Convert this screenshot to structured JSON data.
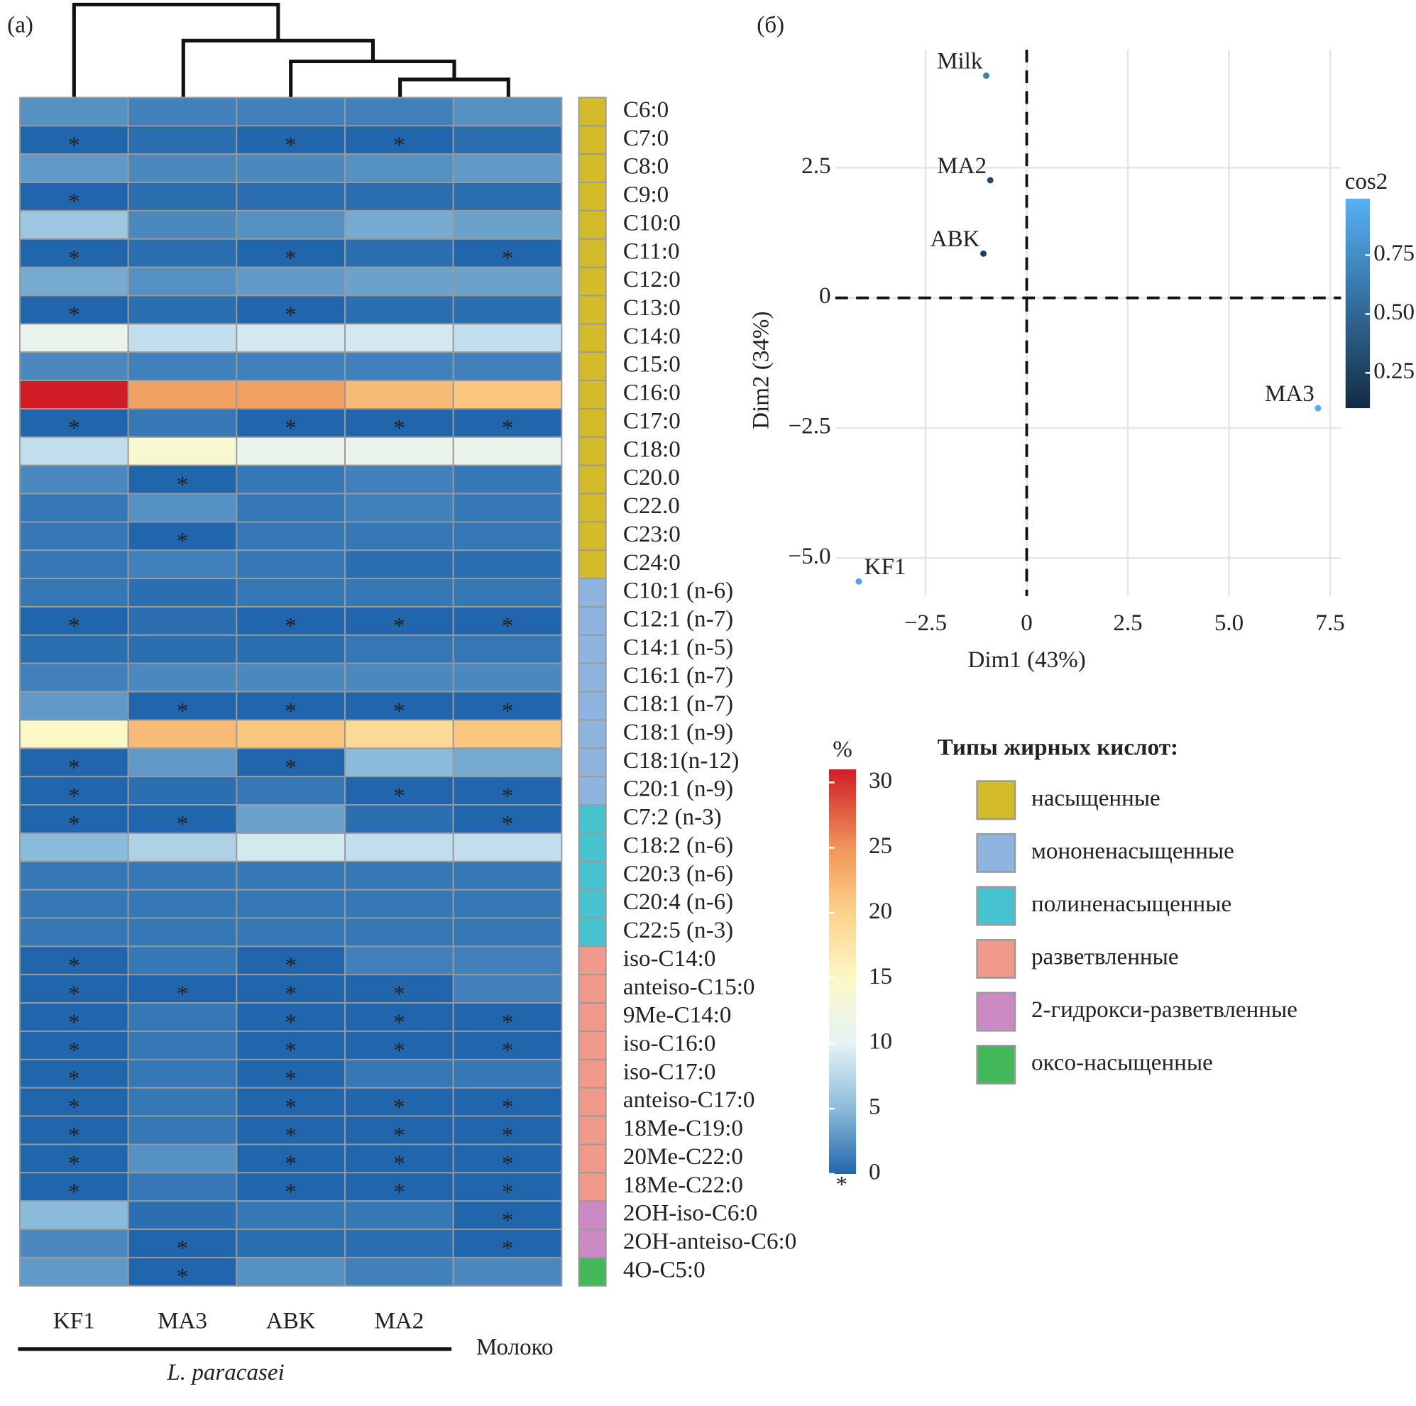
{
  "chart_data": [
    {
      "type": "heatmap",
      "panel_label": "(а)",
      "columns": [
        "KF1",
        "MA3",
        "ABK",
        "MA2",
        "Молоко"
      ],
      "column_group_label": "L. paracasei",
      "rows": [
        "C6:0",
        "C7:0",
        "C8:0",
        "C9:0",
        "C10:0",
        "C11:0",
        "C12:0",
        "C13:0",
        "C14:0",
        "C15:0",
        "C16:0",
        "C17:0",
        "C18:0",
        "C20.0",
        "C22.0",
        "C23:0",
        "C24:0",
        "C10:1 (n-6)",
        "C12:1 (n-7)",
        "C14:1 (n-5)",
        "C16:1 (n-7)",
        "C18:1 (n-7)",
        "C18:1 (n-9)",
        "C18:1(n-12)",
        "C20:1 (n-9)",
        "C7:2 (n-3)",
        "C18:2 (n-6)",
        "C20:3 (n-6)",
        "C20:4 (n-6)",
        "C22:5 (n-3)",
        "iso-C14:0",
        "anteiso-C15:0",
        "9Me-C14:0",
        "iso-C16:0",
        "iso-C17:0",
        "anteiso-C17:0",
        "18Me-C19:0",
        "20Me-C22:0",
        "18Me-C22:0",
        "2OH-iso-C6:0",
        "2OH-anteiso-C6:0",
        "4O-C5:0"
      ],
      "values": [
        [
          2.5,
          1.5,
          1.5,
          1.5,
          2.5
        ],
        [
          0,
          0.5,
          0,
          0,
          0.5
        ],
        [
          3,
          2,
          2,
          2.5,
          3
        ],
        [
          0,
          0.5,
          0.5,
          0.5,
          0.5
        ],
        [
          6,
          2,
          2.5,
          4,
          3.5
        ],
        [
          0,
          0.5,
          0,
          0.5,
          0
        ],
        [
          4,
          2.5,
          3,
          3.5,
          3.5
        ],
        [
          0,
          0.5,
          0,
          0.5,
          0.5
        ],
        [
          11,
          8,
          9,
          9,
          8
        ],
        [
          2,
          1.5,
          1.5,
          1.5,
          1.5
        ],
        [
          31,
          24,
          24,
          22,
          21
        ],
        [
          0,
          1,
          0,
          0,
          0
        ],
        [
          8,
          14,
          11,
          11,
          11
        ],
        [
          2,
          0,
          1,
          1.5,
          1
        ],
        [
          1,
          2.5,
          1,
          1.5,
          1
        ],
        [
          1,
          0,
          1,
          1,
          1
        ],
        [
          1,
          1.5,
          1,
          0.5,
          0.5
        ],
        [
          1,
          0.5,
          1,
          1,
          1
        ],
        [
          0,
          0.5,
          0,
          0,
          0
        ],
        [
          0.5,
          0.5,
          0.5,
          1,
          1
        ],
        [
          1.5,
          2,
          2,
          2,
          2
        ],
        [
          3,
          0,
          0,
          0,
          0
        ],
        [
          15,
          22,
          21,
          19,
          21
        ],
        [
          0,
          3,
          0,
          5,
          4
        ],
        [
          0,
          0.5,
          1,
          0,
          0
        ],
        [
          0,
          0,
          3.5,
          0.5,
          0
        ],
        [
          5,
          7,
          9,
          8,
          8
        ],
        [
          1,
          1,
          1,
          1,
          1
        ],
        [
          1,
          1,
          1,
          1,
          1
        ],
        [
          1,
          1,
          1,
          1,
          1
        ],
        [
          0,
          1,
          0,
          1.5,
          1.5
        ],
        [
          0,
          0,
          0,
          0,
          1.5
        ],
        [
          0,
          1,
          0,
          0,
          0
        ],
        [
          0,
          1,
          0,
          0,
          0
        ],
        [
          0,
          1,
          0,
          1,
          1
        ],
        [
          0,
          1,
          0,
          0,
          0
        ],
        [
          0,
          1,
          0,
          0,
          0
        ],
        [
          0,
          2.5,
          0,
          0,
          0
        ],
        [
          0,
          1,
          0,
          0,
          0
        ],
        [
          5,
          0.5,
          1,
          1,
          0
        ],
        [
          2,
          0,
          0.5,
          0.5,
          0
        ],
        [
          3,
          0,
          2.5,
          1.5,
          2
        ]
      ],
      "zero_marker": "*",
      "colorbar_title": "%",
      "clim": [
        0,
        31
      ],
      "cticks": [
        0,
        5,
        10,
        15,
        20,
        25,
        30
      ],
      "colorscale": [
        [
          0,
          "#2166ac"
        ],
        [
          5,
          "#8bbbda"
        ],
        [
          10,
          "#e6f3f6"
        ],
        [
          15,
          "#fbf8c6"
        ],
        [
          20,
          "#fcd28a"
        ],
        [
          25,
          "#f0955a"
        ],
        [
          31,
          "#d01c25"
        ]
      ],
      "row_groups": [
        0,
        0,
        0,
        0,
        0,
        0,
        0,
        0,
        0,
        0,
        0,
        0,
        0,
        0,
        0,
        0,
        0,
        1,
        1,
        1,
        1,
        1,
        1,
        1,
        1,
        2,
        2,
        2,
        2,
        2,
        3,
        3,
        3,
        3,
        3,
        3,
        3,
        3,
        3,
        4,
        4,
        5
      ],
      "groups_title": "Типы жирных кислот:",
      "groups": [
        {
          "name": "насыщенные",
          "color": "#d4bb2a"
        },
        {
          "name": "мононенасыщенные",
          "color": "#8fb4e0"
        },
        {
          "name": "полиненасыщенные",
          "color": "#47c2cf"
        },
        {
          "name": "разветвленные",
          "color": "#f09a8c"
        },
        {
          "name": "2-гидрокси-разветвленные",
          "color": "#cc8ac4"
        },
        {
          "name": "оксо-насыщенные",
          "color": "#43b85a"
        }
      ]
    },
    {
      "type": "scatter",
      "panel_label": "(б)",
      "x_label": "Dim1 (43%)",
      "y_label": "Dim2 (34%)",
      "labels": [
        "Milk",
        "MA2",
        "ABK",
        "MA3",
        "KF1"
      ],
      "x": [
        -1.0,
        -0.9,
        -1.07,
        7.2,
        -4.15
      ],
      "y": [
        4.27,
        2.26,
        0.85,
        -2.12,
        -5.45
      ],
      "cos2": [
        0.65,
        0.3,
        0.22,
        0.95,
        0.9
      ],
      "xlim": [
        -4.73,
        7.77
      ],
      "ylim": [
        -5.73,
        4.77
      ],
      "xticks": [
        {
          "value": -2.5,
          "label": "−2.5"
        },
        0,
        2.5,
        {
          "value": 5,
          "label": "5.0"
        },
        7.5
      ],
      "yticks": [
        {
          "value": -5,
          "label": "−5.0"
        },
        {
          "value": -2.5,
          "label": "−2.5"
        },
        0,
        2.5
      ],
      "grid": true,
      "hline": 0,
      "vline": 0,
      "colorbar_title": "cos2",
      "clim": [
        0.1,
        0.99
      ],
      "cticks": [
        0.25,
        {
          "value": 0.5,
          "label": "0.50"
        },
        0.75
      ],
      "colorscale": [
        "#132b43",
        "#56b1f7"
      ]
    }
  ]
}
